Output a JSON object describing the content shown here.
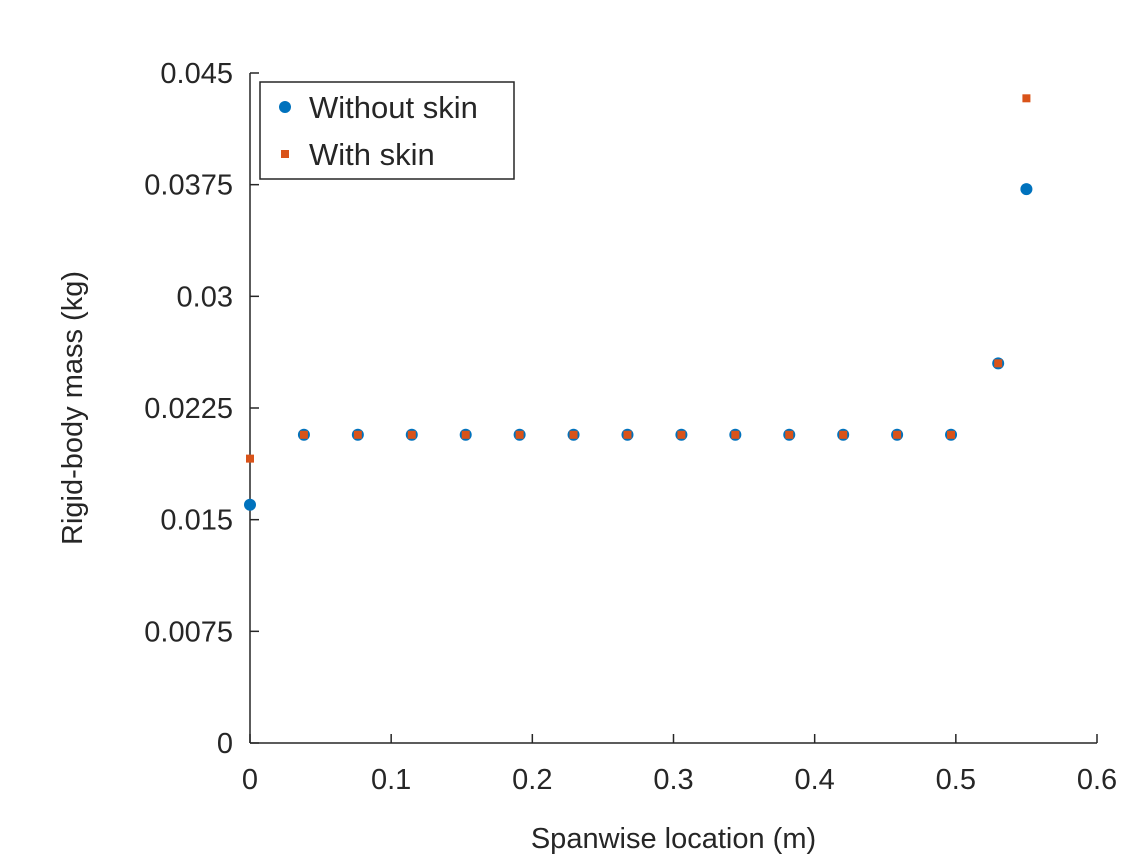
{
  "chart_data": {
    "type": "scatter",
    "title": "",
    "xlabel": "Spanwise location (m)",
    "ylabel": "Rigid-body mass (kg)",
    "xlim": [
      0,
      0.6
    ],
    "ylim": [
      0,
      0.045
    ],
    "xticks": [
      0,
      0.1,
      0.2,
      0.3,
      0.4,
      0.5,
      0.6
    ],
    "xtick_labels": [
      "0",
      "0.1",
      "0.2",
      "0.3",
      "0.4",
      "0.5",
      "0.6"
    ],
    "yticks": [
      0,
      0.0075,
      0.015,
      0.0225,
      0.03,
      0.0375,
      0.045
    ],
    "ytick_labels": [
      "0",
      "0.0075",
      "0.015",
      "0.0225",
      "0.03",
      "0.0375",
      "0.045"
    ],
    "grid": false,
    "legend_position": "top-left",
    "series": [
      {
        "name": "Without skin",
        "marker": "circle",
        "color": "#0072bd",
        "x": [
          0,
          0.0382,
          0.0764,
          0.1146,
          0.1528,
          0.191,
          0.2292,
          0.2674,
          0.3056,
          0.3438,
          0.382,
          0.4202,
          0.4584,
          0.4966,
          0.53,
          0.55
        ],
        "y": [
          0.016,
          0.0207,
          0.0207,
          0.0207,
          0.0207,
          0.0207,
          0.0207,
          0.0207,
          0.0207,
          0.0207,
          0.0207,
          0.0207,
          0.0207,
          0.0207,
          0.0255,
          0.0372
        ]
      },
      {
        "name": "With skin",
        "marker": "square",
        "color": "#d95319",
        "x": [
          0,
          0.0382,
          0.0764,
          0.1146,
          0.1528,
          0.191,
          0.2292,
          0.2674,
          0.3056,
          0.3438,
          0.382,
          0.4202,
          0.4584,
          0.4966,
          0.53,
          0.55
        ],
        "y": [
          0.0191,
          0.0207,
          0.0207,
          0.0207,
          0.0207,
          0.0207,
          0.0207,
          0.0207,
          0.0207,
          0.0207,
          0.0207,
          0.0207,
          0.0207,
          0.0207,
          0.0255,
          0.0433
        ]
      }
    ]
  }
}
